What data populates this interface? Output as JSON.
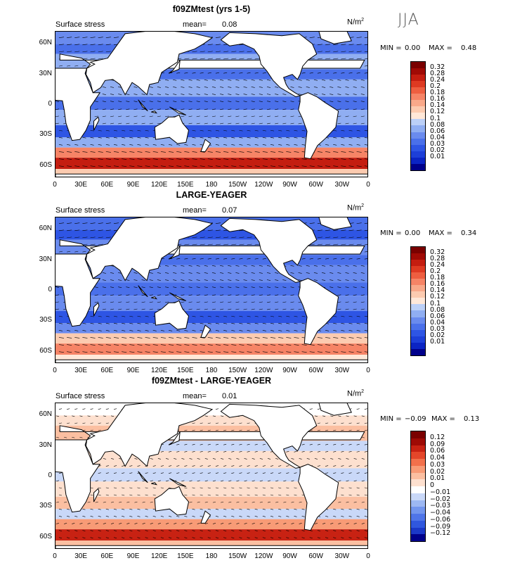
{
  "season": "JJA",
  "colors": {
    "land": "#ffffff",
    "positive_scale": [
      "#00008b",
      "#0b24c4",
      "#1d3fd8",
      "#2e55e4",
      "#4a70ea",
      "#6a8bee",
      "#90aef2",
      "#bcd0f7",
      "#ffe8d8",
      "#fccbb0",
      "#f9a98a",
      "#f68466",
      "#ee5e40",
      "#de3a22",
      "#c41d10",
      "#a00a05",
      "#7a0000"
    ],
    "diff_scale": [
      "#00008b",
      "#1b38c8",
      "#3057de",
      "#4f75e8",
      "#7396ee",
      "#9db8f3",
      "#c9d8f8",
      "#ffffff",
      "#fde0cf",
      "#fbbfa1",
      "#f89b76",
      "#f2704b",
      "#e4462a",
      "#c82213",
      "#9e0a05",
      "#7a0000"
    ]
  },
  "chart_data": [
    {
      "type": "heatmap",
      "title": "f09ZMtest (yrs 1-5)",
      "variable_label": "Surface stress",
      "units_label": "N/m",
      "units_sup": "2",
      "mean_label": "mean=",
      "mean": "0.08",
      "min_label": "MIN =",
      "min": "0.00",
      "max_label": "MAX =",
      "max": "0.48",
      "y_ticks": [
        "60N",
        "30N",
        "0",
        "30S",
        "60S"
      ],
      "x_ticks": [
        "0",
        "30E",
        "60E",
        "90E",
        "120E",
        "150E",
        "180",
        "150W",
        "120W",
        "90W",
        "60W",
        "30W",
        "0"
      ],
      "legend_levels": [
        "0.32",
        "0.28",
        "0.24",
        "0.2",
        "0.18",
        "0.16",
        "0.14",
        "0.12",
        "0.1",
        "0.08",
        "0.06",
        "0.04",
        "0.03",
        "0.02",
        "0.01"
      ]
    },
    {
      "type": "heatmap",
      "title": "LARGE-YEAGER",
      "variable_label": "Surface stress",
      "units_label": "N/m",
      "units_sup": "2",
      "mean_label": "mean=",
      "mean": "0.07",
      "min_label": "MIN =",
      "min": "0.00",
      "max_label": "MAX =",
      "max": "0.34",
      "y_ticks": [
        "60N",
        "30N",
        "0",
        "30S",
        "60S"
      ],
      "x_ticks": [
        "0",
        "30E",
        "60E",
        "90E",
        "120E",
        "150E",
        "180",
        "150W",
        "120W",
        "90W",
        "60W",
        "30W",
        "0"
      ],
      "legend_levels": [
        "0.32",
        "0.28",
        "0.24",
        "0.2",
        "0.18",
        "0.16",
        "0.14",
        "0.12",
        "0.1",
        "0.08",
        "0.06",
        "0.04",
        "0.03",
        "0.02",
        "0.01"
      ]
    },
    {
      "type": "heatmap",
      "title": "f09ZMtest - LARGE-YEAGER",
      "variable_label": "Surface stress",
      "units_label": "N/m",
      "units_sup": "2",
      "mean_label": "mean=",
      "mean": "0.01",
      "min_label": "MIN =",
      "min": "−0.09",
      "max_label": "MAX =",
      "max": "0.13",
      "y_ticks": [
        "60N",
        "30N",
        "0",
        "30S",
        "60S"
      ],
      "x_ticks": [
        "0",
        "30E",
        "60E",
        "90E",
        "120E",
        "150E",
        "180",
        "150W",
        "120W",
        "90W",
        "60W",
        "30W",
        "0"
      ],
      "legend_levels": [
        "0.12",
        "0.09",
        "0.06",
        "0.04",
        "0.03",
        "0.02",
        "0.01",
        "0",
        "−0.01",
        "−0.02",
        "−0.03",
        "−0.04",
        "−0.06",
        "−0.09",
        "−0.12"
      ]
    }
  ]
}
